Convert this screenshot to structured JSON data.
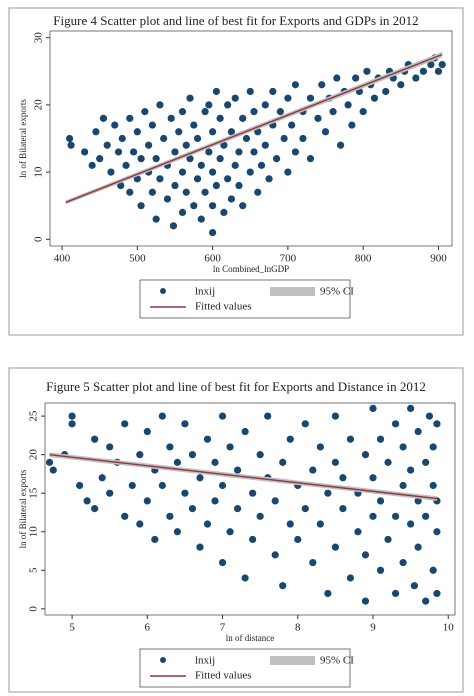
{
  "chart_data": [
    {
      "type": "scatter",
      "title": "Figure 4 Scatter plot and line of best fit for Exports and GDPs in 2012",
      "x_label": "ln Combined_lnGDP",
      "y_label": "ln of Bilateral exports",
      "xlim": [
        384,
        918
      ],
      "ylim": [
        -1,
        31
      ],
      "xticks": [
        400,
        500,
        600,
        700,
        800,
        900
      ],
      "yticks": [
        0,
        10,
        20,
        30
      ],
      "series": [
        {
          "name": "lnxij",
          "color": "#1a476f",
          "x": [
            410,
            412,
            430,
            440,
            445,
            450,
            455,
            460,
            465,
            470,
            475,
            478,
            480,
            485,
            490,
            490,
            495,
            500,
            500,
            505,
            505,
            510,
            515,
            515,
            520,
            520,
            525,
            525,
            530,
            530,
            535,
            540,
            540,
            545,
            548,
            550,
            550,
            555,
            560,
            560,
            560,
            565,
            565,
            570,
            570,
            575,
            575,
            580,
            580,
            585,
            585,
            590,
            590,
            595,
            595,
            600,
            600,
            600,
            600,
            605,
            605,
            610,
            610,
            615,
            615,
            620,
            620,
            625,
            625,
            630,
            630,
            635,
            635,
            640,
            640,
            645,
            650,
            650,
            655,
            655,
            660,
            660,
            665,
            670,
            670,
            675,
            680,
            680,
            685,
            690,
            695,
            700,
            700,
            705,
            710,
            710,
            720,
            720,
            730,
            730,
            740,
            745,
            750,
            755,
            760,
            765,
            770,
            775,
            780,
            785,
            790,
            795,
            800,
            805,
            810,
            815,
            820,
            830,
            835,
            840,
            850,
            855,
            860,
            870,
            880,
            890,
            900,
            895,
            905
          ],
          "values": [
            15,
            14,
            13,
            11,
            16,
            12,
            18,
            14,
            10,
            17,
            13,
            8,
            15,
            11,
            18,
            7,
            13,
            9,
            16,
            5,
            12,
            19,
            10,
            14,
            7,
            17,
            3,
            12,
            9,
            20,
            15,
            6,
            11,
            18,
            2,
            8,
            13,
            16,
            4,
            10,
            19,
            7,
            14,
            12,
            21,
            5,
            17,
            9,
            15,
            3,
            11,
            19,
            7,
            13,
            20,
            1,
            5,
            10,
            16,
            8,
            22,
            12,
            18,
            4,
            14,
            9,
            20,
            6,
            16,
            11,
            21,
            13,
            8,
            18,
            5,
            15,
            10,
            22,
            13,
            19,
            7,
            16,
            11,
            20,
            14,
            9,
            17,
            22,
            12,
            19,
            15,
            10,
            21,
            17,
            13,
            23,
            19,
            15,
            21,
            12,
            18,
            23,
            16,
            21,
            19,
            24,
            14,
            22,
            20,
            17,
            24,
            22,
            19,
            25,
            23,
            21,
            24,
            22,
            25,
            24,
            23,
            25,
            26,
            24,
            25,
            26,
            25,
            27,
            26
          ]
        },
        {
          "name": "95% CI",
          "color": "#c0c0c0",
          "x": [
            405,
            905
          ],
          "lower": [
            5.2,
            27.1
          ],
          "upper": [
            5.8,
            27.9
          ]
        },
        {
          "name": "Fitted values",
          "color": "#90353b",
          "x": [
            405,
            905
          ],
          "values": [
            5.5,
            27.5
          ]
        }
      ]
    },
    {
      "type": "scatter",
      "title": "Figure 5 Scatter plot and line of best fit for Exports and Distance in 2012",
      "x_label": "ln of distance",
      "y_label": "ln of Bilateral exports",
      "xlim": [
        4.64,
        10.09
      ],
      "ylim": [
        -0.8,
        26.7
      ],
      "xticks": [
        5,
        6,
        7,
        8,
        9,
        10
      ],
      "yticks": [
        0,
        5,
        10,
        15,
        20,
        25
      ],
      "series": [
        {
          "name": "lnxij",
          "color": "#1a476f",
          "x": [
            4.7,
            4.75,
            4.9,
            5.0,
            5.0,
            5.1,
            5.2,
            5.3,
            5.3,
            5.4,
            5.5,
            5.5,
            5.6,
            5.7,
            5.7,
            5.8,
            5.9,
            5.9,
            6.0,
            6.0,
            6.1,
            6.1,
            6.2,
            6.2,
            6.3,
            6.3,
            6.4,
            6.4,
            6.5,
            6.5,
            6.6,
            6.6,
            6.7,
            6.7,
            6.8,
            6.8,
            6.9,
            6.9,
            7.0,
            7.0,
            7.0,
            7.1,
            7.1,
            7.2,
            7.2,
            7.3,
            7.3,
            7.4,
            7.4,
            7.5,
            7.5,
            7.6,
            7.6,
            7.7,
            7.7,
            7.8,
            7.8,
            7.9,
            7.9,
            8.0,
            8.0,
            8.1,
            8.1,
            8.2,
            8.2,
            8.3,
            8.3,
            8.4,
            8.4,
            8.5,
            8.5,
            8.5,
            8.6,
            8.6,
            8.7,
            8.7,
            8.8,
            8.8,
            8.9,
            8.9,
            8.9,
            9.0,
            9.0,
            9.0,
            9.1,
            9.1,
            9.1,
            9.2,
            9.2,
            9.3,
            9.3,
            9.3,
            9.4,
            9.4,
            9.4,
            9.5,
            9.5,
            9.5,
            9.55,
            9.6,
            9.6,
            9.6,
            9.7,
            9.7,
            9.7,
            9.75,
            9.8,
            9.8,
            9.8,
            9.85,
            9.85,
            9.85,
            9.85
          ],
          "values": [
            19,
            18,
            20,
            25,
            24,
            16,
            14,
            22,
            13,
            17,
            21,
            15,
            19,
            12,
            24,
            16,
            20,
            11,
            23,
            14,
            18,
            9,
            25,
            16,
            12,
            21,
            19,
            10,
            15,
            24,
            13,
            20,
            8,
            17,
            22,
            11,
            19,
            14,
            25,
            6,
            16,
            21,
            10,
            13,
            18,
            4,
            23,
            15,
            9,
            20,
            12,
            17,
            25,
            7,
            14,
            19,
            3,
            22,
            11,
            16,
            9,
            24,
            13,
            18,
            6,
            21,
            11,
            15,
            2,
            25,
            8,
            19,
            13,
            17,
            4,
            22,
            10,
            15,
            20,
            1,
            7,
            26,
            12,
            17,
            5,
            22,
            14,
            9,
            19,
            2,
            24,
            12,
            16,
            6,
            21,
            11,
            26,
            18,
            3,
            14,
            23,
            8,
            19,
            1,
            12,
            25,
            16,
            5,
            21,
            10,
            14,
            24,
            2
          ]
        },
        {
          "name": "95% CI",
          "color": "#c0c0c0",
          "x": [
            4.7,
            9.85
          ],
          "lower": [
            19.7,
            14.0
          ],
          "upper": [
            20.3,
            14.6
          ]
        },
        {
          "name": "Fitted values",
          "color": "#90353b",
          "x": [
            4.7,
            9.85
          ],
          "values": [
            20,
            14.3
          ]
        }
      ]
    }
  ]
}
